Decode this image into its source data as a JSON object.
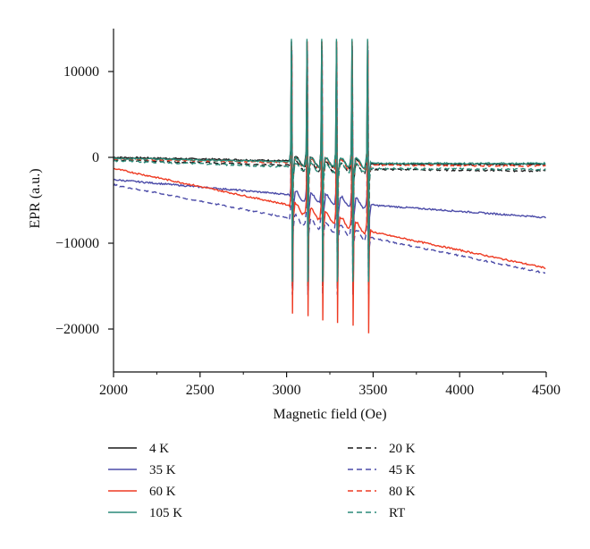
{
  "chart_data": {
    "type": "line",
    "xlabel": "Magnetic field (Oe)",
    "ylabel": "EPR (a.u.)",
    "xlim": [
      2000,
      4500
    ],
    "ylim": [
      -25000,
      15000
    ],
    "xticks": [
      2000,
      2500,
      3000,
      3500,
      4000,
      4500
    ],
    "yticks": [
      10000,
      0,
      -10000,
      -20000
    ],
    "ytick_labels": [
      "10000",
      "0",
      "−10000",
      "−20000"
    ],
    "grid": false,
    "legend_position": "bottom",
    "hyperfine_centers": [
      3030,
      3120,
      3205,
      3290,
      3380,
      3470
    ],
    "series": [
      {
        "name": "4 K",
        "color": "#1a1a1a",
        "dash": "solid",
        "baseline": [
          [
            2000,
            0
          ],
          [
            3000,
            -400
          ],
          [
            3520,
            -800
          ],
          [
            4500,
            -800
          ]
        ],
        "peaks_top": [
          13500,
          13500,
          13500,
          13500,
          13500,
          13500
        ],
        "peaks_bottom": [
          -15000,
          -15000,
          -15000,
          -15000,
          -15000,
          -15000
        ]
      },
      {
        "name": "20 K",
        "color": "#1a1a1a",
        "dash": "dashed",
        "baseline": [
          [
            2000,
            -300
          ],
          [
            3000,
            -900
          ],
          [
            3520,
            -1400
          ],
          [
            4500,
            -1600
          ]
        ],
        "peaks_top": [
          13000,
          13000,
          13000,
          13000,
          13000,
          13000
        ],
        "peaks_bottom": [
          -15000,
          -15000,
          -15000,
          -15000,
          -15000,
          -15000
        ]
      },
      {
        "name": "35 K",
        "color": "#4b4ba8",
        "dash": "solid",
        "baseline": [
          [
            2000,
            -2600
          ],
          [
            3000,
            -4300
          ],
          [
            3520,
            -5600
          ],
          [
            4500,
            -7000
          ]
        ],
        "peaks_top": [
          12500,
          12500,
          12500,
          12500,
          12500,
          12500
        ],
        "peaks_bottom": [
          -15500,
          -15500,
          -15500,
          -15500,
          -15500,
          -15500
        ]
      },
      {
        "name": "45 K",
        "color": "#4b4ba8",
        "dash": "dashed",
        "baseline": [
          [
            2000,
            -3200
          ],
          [
            3000,
            -7000
          ],
          [
            3520,
            -9500
          ],
          [
            4500,
            -13500
          ]
        ],
        "peaks_top": [
          12000,
          12000,
          12000,
          12000,
          12000,
          12000
        ],
        "peaks_bottom": [
          -16000,
          -16000,
          -16000,
          -16000,
          -16000,
          -16000
        ]
      },
      {
        "name": "60 K",
        "color": "#ee3a22",
        "dash": "solid",
        "baseline": [
          [
            2000,
            -1300
          ],
          [
            3000,
            -5500
          ],
          [
            3520,
            -8800
          ],
          [
            4500,
            -12900
          ]
        ],
        "peaks_top": [
          13000,
          13500,
          13500,
          13500,
          13500,
          13500
        ],
        "peaks_bottom": [
          -18200,
          -18500,
          -19000,
          -19300,
          -19600,
          -20500
        ]
      },
      {
        "name": "80 K",
        "color": "#ee3a22",
        "dash": "dashed",
        "baseline": [
          [
            2000,
            -200
          ],
          [
            3000,
            -600
          ],
          [
            3520,
            -900
          ],
          [
            4500,
            -1000
          ]
        ],
        "peaks_top": [
          12000,
          12000,
          12000,
          12000,
          12000,
          12000
        ],
        "peaks_bottom": [
          -14500,
          -14500,
          -14500,
          -14500,
          -14500,
          -14500
        ]
      },
      {
        "name": "105 K",
        "color": "#2a8a78",
        "dash": "solid",
        "baseline": [
          [
            2000,
            -100
          ],
          [
            3000,
            -500
          ],
          [
            3520,
            -700
          ],
          [
            4500,
            -700
          ]
        ],
        "peaks_top": [
          13800,
          13800,
          13800,
          13800,
          13800,
          13800
        ],
        "peaks_bottom": [
          -14500,
          -14500,
          -14500,
          -14500,
          -14500,
          -14500
        ]
      },
      {
        "name": "RT",
        "color": "#2a8a78",
        "dash": "dashed",
        "baseline": [
          [
            2000,
            -400
          ],
          [
            3000,
            -1100
          ],
          [
            3520,
            -1300
          ],
          [
            4500,
            -1400
          ]
        ],
        "peaks_top": [
          12500,
          12500,
          12500,
          12500,
          12500,
          12500
        ],
        "peaks_bottom": [
          -14000,
          -14000,
          -14000,
          -14000,
          -14000,
          -14000
        ]
      }
    ]
  }
}
